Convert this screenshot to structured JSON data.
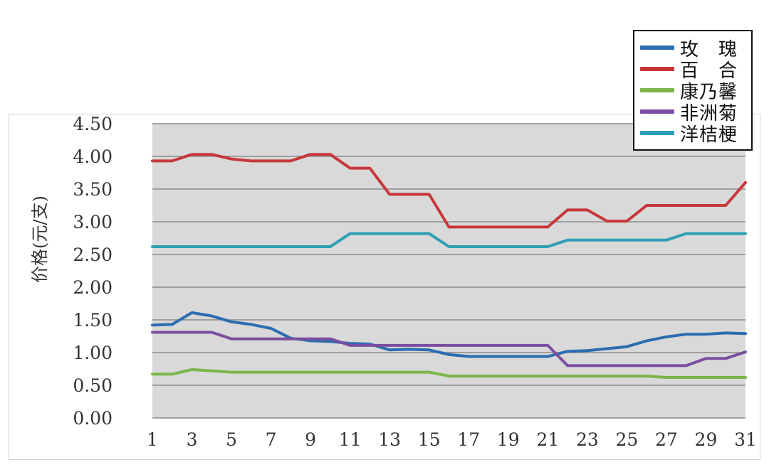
{
  "chart_data": {
    "type": "line",
    "ylabel": "价格(元/支)",
    "xlabel": "",
    "x": [
      1,
      2,
      3,
      4,
      5,
      6,
      7,
      8,
      9,
      10,
      11,
      12,
      13,
      14,
      15,
      16,
      17,
      18,
      19,
      20,
      21,
      22,
      23,
      24,
      25,
      26,
      27,
      28,
      29,
      30,
      31
    ],
    "x_ticks": [
      1,
      3,
      5,
      7,
      9,
      11,
      13,
      15,
      17,
      19,
      21,
      23,
      25,
      27,
      29,
      31
    ],
    "y_ticks": [
      "0.00",
      "0.50",
      "1.00",
      "1.50",
      "2.00",
      "2.50",
      "3.00",
      "3.50",
      "4.00",
      "4.50"
    ],
    "ylim": [
      0,
      4.5
    ],
    "grid": "horizontal",
    "legend_position": "top-right",
    "series": [
      {
        "name": "玫　瑰",
        "color": "#2a6db0",
        "values": [
          1.42,
          1.43,
          1.61,
          1.56,
          1.47,
          1.43,
          1.37,
          1.22,
          1.18,
          1.17,
          1.14,
          1.13,
          1.04,
          1.05,
          1.04,
          0.97,
          0.94,
          0.94,
          0.94,
          0.94,
          0.94,
          1.02,
          1.03,
          1.06,
          1.09,
          1.18,
          1.24,
          1.28,
          1.28,
          1.3,
          1.29
        ]
      },
      {
        "name": "百　合",
        "color": "#c8373a",
        "values": [
          3.93,
          3.93,
          4.03,
          4.03,
          3.96,
          3.93,
          3.93,
          3.93,
          4.03,
          4.03,
          3.82,
          3.82,
          3.42,
          3.42,
          3.42,
          2.92,
          2.92,
          2.92,
          2.92,
          2.92,
          2.92,
          3.18,
          3.18,
          3.01,
          3.01,
          3.25,
          3.25,
          3.25,
          3.25,
          3.25,
          3.6
        ]
      },
      {
        "name": "康乃馨",
        "color": "#7ab648",
        "values": [
          0.67,
          0.67,
          0.74,
          0.72,
          0.7,
          0.7,
          0.7,
          0.7,
          0.7,
          0.7,
          0.7,
          0.7,
          0.7,
          0.7,
          0.7,
          0.64,
          0.64,
          0.64,
          0.64,
          0.64,
          0.64,
          0.64,
          0.64,
          0.64,
          0.64,
          0.64,
          0.62,
          0.62,
          0.62,
          0.62,
          0.62
        ]
      },
      {
        "name": "非洲菊",
        "color": "#7b4ea0",
        "values": [
          1.31,
          1.31,
          1.31,
          1.31,
          1.21,
          1.21,
          1.21,
          1.21,
          1.21,
          1.21,
          1.11,
          1.11,
          1.11,
          1.11,
          1.11,
          1.11,
          1.11,
          1.11,
          1.11,
          1.11,
          1.11,
          0.8,
          0.8,
          0.8,
          0.8,
          0.8,
          0.8,
          0.8,
          0.91,
          0.91,
          1.01
        ]
      },
      {
        "name": "洋桔梗",
        "color": "#2f9fb3",
        "values": [
          2.62,
          2.62,
          2.62,
          2.62,
          2.62,
          2.62,
          2.62,
          2.62,
          2.62,
          2.62,
          2.82,
          2.82,
          2.82,
          2.82,
          2.82,
          2.62,
          2.62,
          2.62,
          2.62,
          2.62,
          2.62,
          2.72,
          2.72,
          2.72,
          2.72,
          2.72,
          2.72,
          2.82,
          2.82,
          2.82,
          2.82
        ]
      }
    ]
  }
}
